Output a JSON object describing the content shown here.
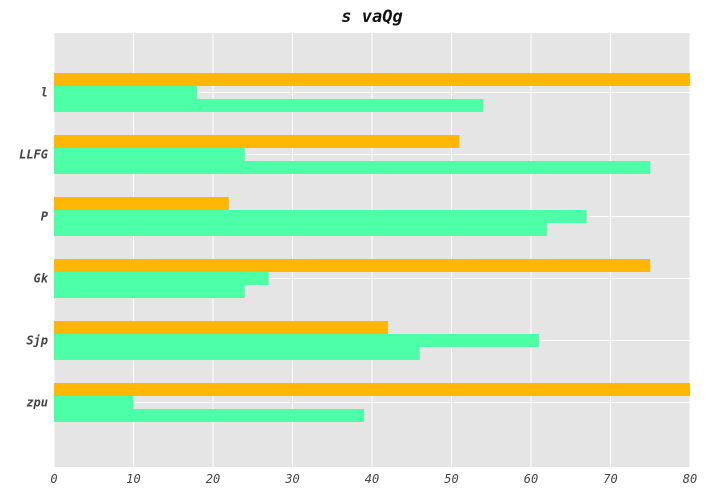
{
  "chart_data": {
    "type": "bar",
    "orientation": "horizontal",
    "title": "s vaQg",
    "xlabel": "",
    "ylabel": "",
    "categories": [
      "l",
      "LLFG",
      "P",
      "Gk",
      "Sjp",
      "zpu"
    ],
    "series": [
      {
        "color": "#ffb703",
        "values": [
          80,
          51,
          22,
          75,
          42,
          80
        ]
      },
      {
        "color": "#4dffa6",
        "values": [
          18,
          24,
          67,
          27,
          61,
          10
        ]
      },
      {
        "color": "#4dffa6",
        "values": [
          54,
          75,
          62,
          24,
          46,
          39
        ]
      }
    ],
    "xlim": [
      0,
      80
    ],
    "xticks": [
      0,
      10,
      20,
      30,
      40,
      50,
      60,
      70,
      80
    ],
    "grid": true,
    "background": "#e5e5e5",
    "grid_color": "#ffffff"
  }
}
